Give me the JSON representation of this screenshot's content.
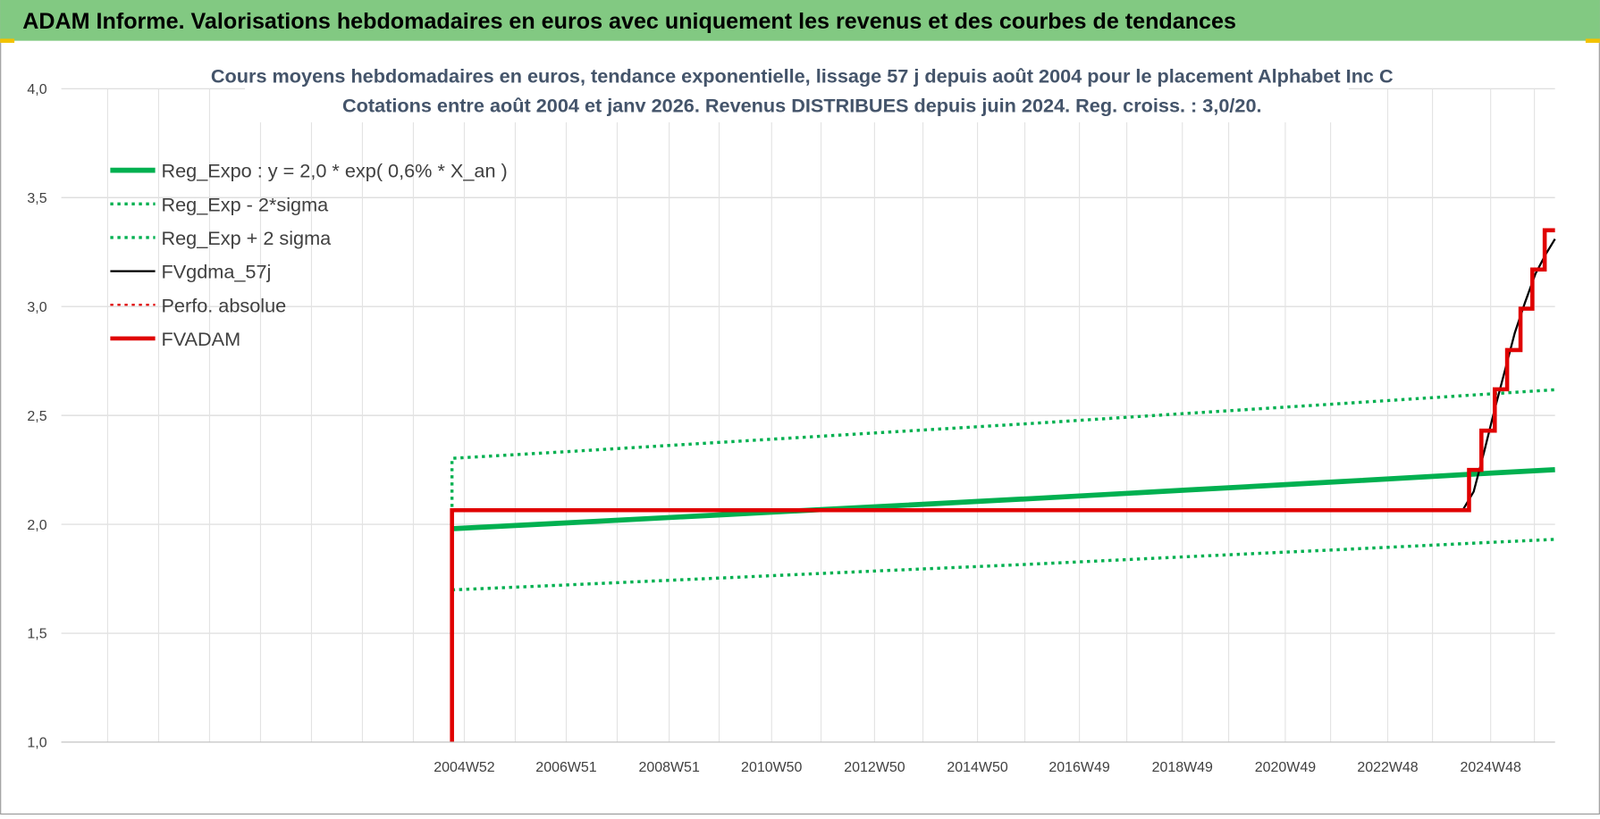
{
  "header": {
    "title": "ADAM Informe. Valorisations hebdomadaires en euros avec uniquement les revenus et des courbes de tendances"
  },
  "chart_data": {
    "type": "line",
    "title": "Cours moyens hebdomadaires en euros, tendance exponentielle, lissage 57 j depuis août 2004 pour le placement Alphabet Inc C",
    "subtitle": "Cotations entre août 2004 et janv 2026. Revenus DISTRIBUES depuis juin 2024. Reg. croiss. : 3,0/20.",
    "xlim": [
      1997.16,
      2026.18
    ],
    "xticks": [
      {
        "value": 2004.99,
        "label": "2004W52"
      },
      {
        "value": 2006.97,
        "label": "2006W51"
      },
      {
        "value": 2008.97,
        "label": "2008W51"
      },
      {
        "value": 2010.96,
        "label": "2010W50"
      },
      {
        "value": 2012.96,
        "label": "2012W50"
      },
      {
        "value": 2014.96,
        "label": "2014W50"
      },
      {
        "value": 2016.94,
        "label": "2016W49"
      },
      {
        "value": 2018.94,
        "label": "2018W49"
      },
      {
        "value": 2020.94,
        "label": "2020W49"
      },
      {
        "value": 2022.93,
        "label": "2022W48"
      },
      {
        "value": 2024.93,
        "label": "2024W48"
      }
    ],
    "ylim": [
      1,
      4
    ],
    "yticks": [
      {
        "value": 1,
        "label": "1,0"
      },
      {
        "value": 1.5,
        "label": "1,5"
      },
      {
        "value": 2,
        "label": "2,0"
      },
      {
        "value": 2.5,
        "label": "2,5"
      },
      {
        "value": 3,
        "label": "3,0"
      },
      {
        "value": 3.5,
        "label": "3,5"
      },
      {
        "value": 4,
        "label": "4,0"
      }
    ],
    "grid": true,
    "legend": "top-left",
    "series": [
      {
        "name": "Reg_Expo : y = 2,0 * exp( 0,6% *  X_an )",
        "color": "#00b050",
        "style": "solid",
        "width": 5,
        "x": [
          2004.75,
          2007,
          2010,
          2013,
          2016,
          2019,
          2022,
          2025,
          2026.18
        ],
        "values": [
          1.98,
          2.007,
          2.044,
          2.081,
          2.118,
          2.157,
          2.196,
          2.236,
          2.251
        ]
      },
      {
        "name": "Reg_Exp - 2*sigma",
        "color": "#00b050",
        "style": "dotted",
        "width": 3,
        "x": [
          2004.75,
          2007,
          2010,
          2013,
          2016,
          2019,
          2022,
          2025,
          2026.18
        ],
        "values": [
          1.699,
          1.722,
          1.754,
          1.786,
          1.817,
          1.851,
          1.884,
          1.918,
          1.931
        ]
      },
      {
        "name": "Reg_Exp + 2 sigma",
        "color": "#00b050",
        "style": "dotted",
        "width": 3,
        "x": [
          2004.75,
          2004.75,
          2007,
          2010,
          2013,
          2016,
          2019,
          2022,
          2025,
          2026.18
        ],
        "values": [
          2.08,
          2.303,
          2.334,
          2.377,
          2.42,
          2.463,
          2.509,
          2.554,
          2.6,
          2.618
        ]
      },
      {
        "name": "FVgdma_57j",
        "color": "#000000",
        "style": "solid",
        "width": 2,
        "x": [
          2004.75,
          2024.1,
          2024.4,
          2024.6,
          2024.8,
          2025.0,
          2025.2,
          2025.4,
          2025.6,
          2025.8,
          2026.0,
          2026.18
        ],
        "values": [
          2.065,
          2.065,
          2.07,
          2.15,
          2.33,
          2.52,
          2.7,
          2.88,
          3.02,
          3.15,
          3.24,
          3.31
        ]
      },
      {
        "name": "Perfo. absolue",
        "color": "#e00000",
        "style": "dotted",
        "width": 2,
        "x": [],
        "values": []
      },
      {
        "name": "FVADAM",
        "color": "#e00000",
        "style": "solid",
        "width": 4,
        "x": [
          2004.75,
          2004.75,
          2024.51,
          2024.51,
          2024.75,
          2024.75,
          2025.01,
          2025.01,
          2025.25,
          2025.25,
          2025.51,
          2025.51,
          2025.74,
          2025.74,
          2025.98,
          2025.98,
          2026.18
        ],
        "values": [
          1.0,
          2.065,
          2.065,
          2.25,
          2.25,
          2.43,
          2.43,
          2.62,
          2.62,
          2.8,
          2.8,
          2.99,
          2.99,
          3.17,
          3.17,
          3.35,
          3.35
        ]
      }
    ]
  }
}
